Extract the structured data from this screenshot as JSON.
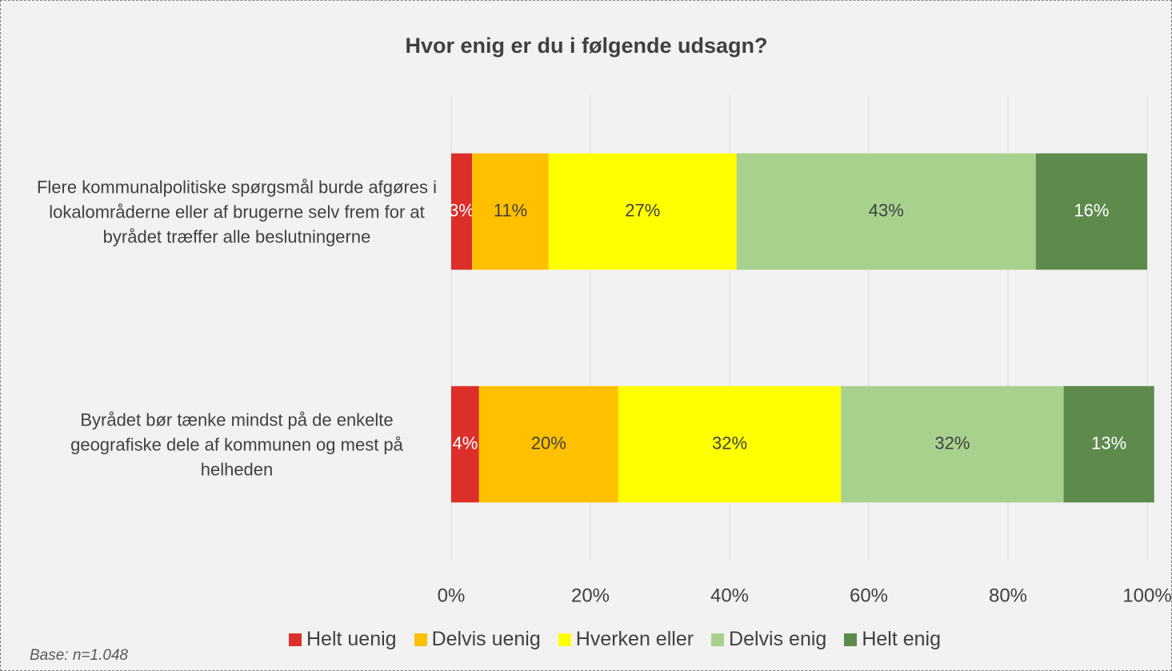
{
  "chart_data": {
    "type": "bar",
    "stacked": true,
    "title": "Hvor enig er du i følgende udsagn?",
    "categories": [
      "Flere kommunalpolitiske spørgsmål burde afgøres i lokalområderne eller af brugerne selv frem for at byrådet træffer alle beslutningerne",
      "Byrådet bør tænke mindst på de enkelte geografiske dele af kommunen og mest på helheden"
    ],
    "series": [
      {
        "name": "Helt uenig",
        "color": "#dc2f2a",
        "values": [
          3,
          4
        ],
        "value_labels": [
          "3%",
          "4%"
        ]
      },
      {
        "name": "Delvis uenig",
        "color": "#ffc000",
        "values": [
          11,
          20
        ],
        "value_labels": [
          "11%",
          "20%"
        ]
      },
      {
        "name": "Hverken eller",
        "color": "#ffff00",
        "values": [
          27,
          32
        ],
        "value_labels": [
          "27%",
          "32%"
        ]
      },
      {
        "name": "Delvis enig",
        "color": "#a9d18e",
        "values": [
          43,
          32
        ],
        "value_labels": [
          "43%",
          "32%"
        ]
      },
      {
        "name": "Helt enig",
        "color": "#5e8a4c",
        "values": [
          16,
          13
        ],
        "value_labels": [
          "16%",
          "13%"
        ]
      }
    ],
    "xlim": [
      0,
      100
    ],
    "xticks": [
      {
        "value": 0,
        "label": "0%"
      },
      {
        "value": 20,
        "label": "20%"
      },
      {
        "value": 40,
        "label": "40%"
      },
      {
        "value": 60,
        "label": "60%"
      },
      {
        "value": 80,
        "label": "80%"
      },
      {
        "value": 100,
        "label": "100%"
      }
    ],
    "grid": true,
    "legend": "bottom",
    "note": "Base: n=1.048"
  }
}
